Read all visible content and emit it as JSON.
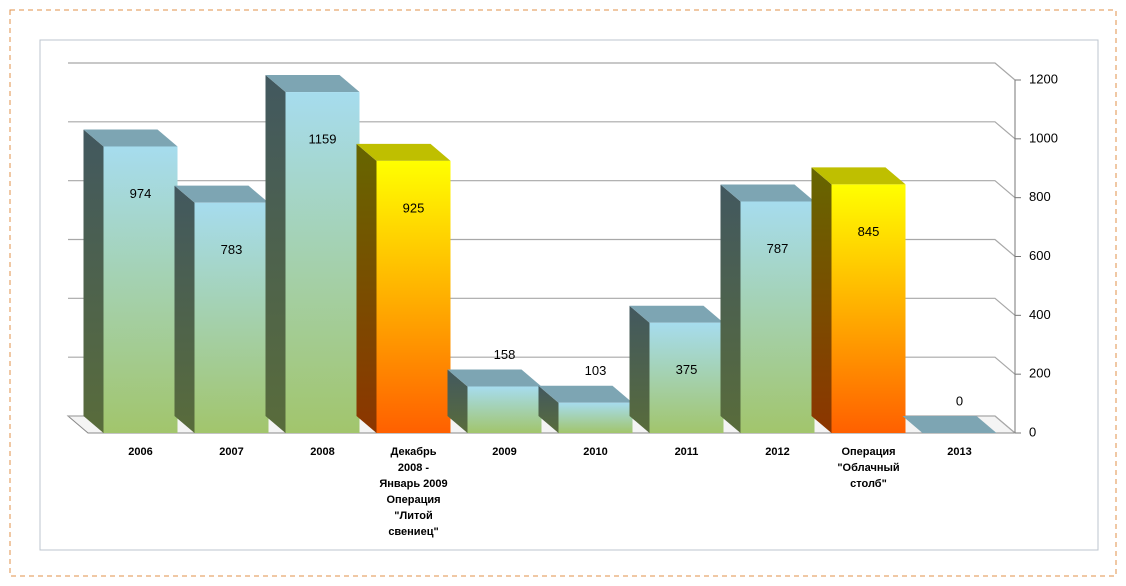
{
  "chart_data": {
    "type": "bar3d",
    "categories": [
      "2006",
      "2007",
      "2008",
      "Декабрь 2008 - Январь 2009 Операция \"Литой свениец\"",
      "2009",
      "2010",
      "2011",
      "2012",
      "Операция \"Облачный столб\"",
      "2013"
    ],
    "values": [
      974,
      783,
      1159,
      925,
      158,
      103,
      375,
      787,
      845,
      0
    ],
    "point_colors": [
      [
        "#a6dcee",
        "#a2c56c"
      ],
      [
        "#a6dcee",
        "#a2c56c"
      ],
      [
        "#a6dcee",
        "#a2c56c"
      ],
      [
        "#ffff00",
        "#ff6000"
      ],
      [
        "#a6dcee",
        "#a2c56c"
      ],
      [
        "#a6dcee",
        "#a2c56c"
      ],
      [
        "#a6dcee",
        "#a2c56c"
      ],
      [
        "#a6dcee",
        "#a2c56c"
      ],
      [
        "#ffff00",
        "#ff6000"
      ],
      [
        "#a6dcee",
        "#a2c56c"
      ]
    ],
    "ylim": [
      0,
      1200
    ],
    "yticks": [
      0,
      200,
      400,
      600,
      800,
      1000,
      1200
    ],
    "grid": true,
    "y_axis_side": "right"
  }
}
